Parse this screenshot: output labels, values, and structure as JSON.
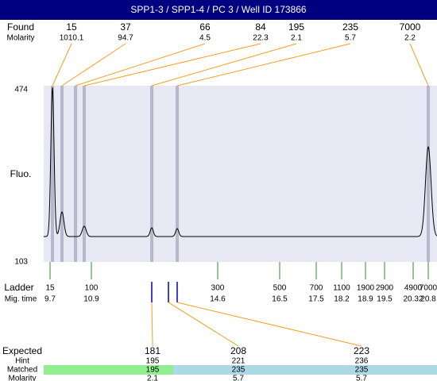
{
  "header": {
    "title": "SPP1-3 / SPP1-4 / PC 3 / Well ID 173866"
  },
  "found": {
    "label": "Found",
    "sizes": [
      15,
      37,
      66,
      84,
      195,
      235,
      7000
    ],
    "molarity_label": "Molarity",
    "molarity": [
      1010.1,
      94.7,
      4.5,
      22.3,
      2.1,
      5.7,
      2.2
    ]
  },
  "plot": {
    "y_label": "Fluo.",
    "y_max": 474,
    "y_min": 103
  },
  "ladder": {
    "label": "Ladder",
    "sizes": [
      15,
      100,
      300,
      500,
      700,
      1100,
      1900,
      2900,
      4900,
      7000
    ],
    "mig_label": "Mig. time",
    "mig_times": [
      9.7,
      10.9,
      14.6,
      16.5,
      17.5,
      18.2,
      18.9,
      19.5,
      20.32,
      20.8
    ]
  },
  "expected": {
    "label": "Expected",
    "values": [
      181,
      208,
      223
    ],
    "hint_label": "Hint",
    "hint": [
      195,
      221,
      236
    ],
    "matched_label": "Matched",
    "matched": [
      195,
      235,
      235
    ],
    "molarity_label": "Molarity",
    "molarity": [
      2.1,
      5.7,
      5.7
    ]
  }
}
